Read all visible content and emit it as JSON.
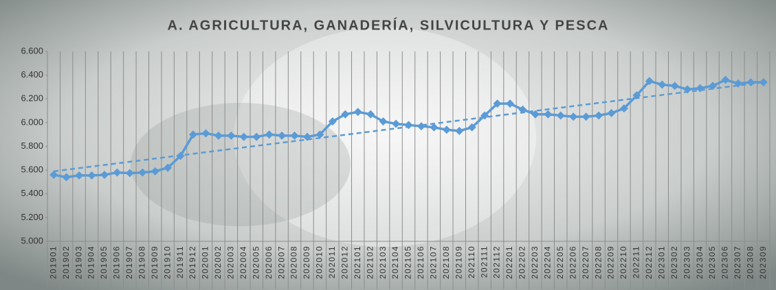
{
  "chart_data": {
    "type": "line",
    "title": "A. AGRICULTURA, GANADERÍA, SILVICULTURA Y PESCA",
    "categories": [
      "201901",
      "201902",
      "201903",
      "201904",
      "201905",
      "201906",
      "201907",
      "201908",
      "201909",
      "201910",
      "201911",
      "201912",
      "202001",
      "202002",
      "202003",
      "202004",
      "202005",
      "202006",
      "202007",
      "202008",
      "202009",
      "202010",
      "202011",
      "202012",
      "202101",
      "202102",
      "202103",
      "202104",
      "202105",
      "202106",
      "202107",
      "202108",
      "202109",
      "202110",
      "202111",
      "202112",
      "202201",
      "202202",
      "202203",
      "202204",
      "202205",
      "202206",
      "202207",
      "202208",
      "202209",
      "202210",
      "202211",
      "202212",
      "202301",
      "202302",
      "202303",
      "202304",
      "202305",
      "202306",
      "202307",
      "202308",
      "202309"
    ],
    "values": [
      5560,
      5540,
      5555,
      5555,
      5560,
      5580,
      5575,
      5580,
      5590,
      5620,
      5720,
      5900,
      5910,
      5890,
      5890,
      5880,
      5880,
      5900,
      5890,
      5890,
      5880,
      5900,
      6010,
      6070,
      6090,
      6070,
      6010,
      5990,
      5980,
      5970,
      5960,
      5940,
      5930,
      5960,
      6060,
      6160,
      6160,
      6110,
      6070,
      6070,
      6060,
      6050,
      6050,
      6060,
      6080,
      6120,
      6230,
      6350,
      6320,
      6310,
      6280,
      6290,
      6310,
      6360,
      6330,
      6340,
      6340
    ],
    "color": "#5b9bd5",
    "trend": [
      5590,
      6340
    ],
    "ylim": [
      5000,
      6600
    ],
    "yticks": [
      {
        "value": 5000,
        "label": "5.000"
      },
      {
        "value": 5200,
        "label": "5.200"
      },
      {
        "value": 5400,
        "label": "5.400"
      },
      {
        "value": 5600,
        "label": "5.600"
      },
      {
        "value": 5800,
        "label": "5.800"
      },
      {
        "value": 6000,
        "label": "6.000"
      },
      {
        "value": 6200,
        "label": "6.200"
      },
      {
        "value": 6400,
        "label": "6.400"
      },
      {
        "value": 6600,
        "label": "6.600"
      }
    ],
    "vertical_grid": true
  }
}
